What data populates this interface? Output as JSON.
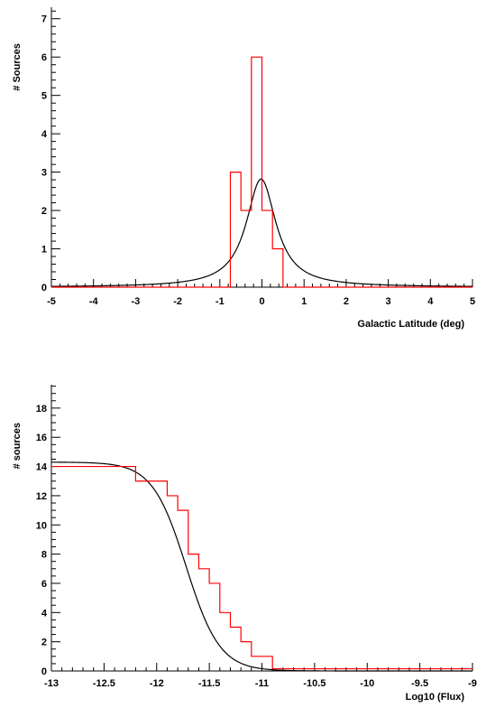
{
  "chart_data": [
    {
      "type": "line",
      "title": "",
      "xlabel": "Galactic Latitude (deg)",
      "ylabel": "# Sources",
      "xlim": [
        -5,
        5
      ],
      "ylim": [
        0,
        7.3
      ],
      "x_ticks": [
        -5,
        -4,
        -3,
        -2,
        -1,
        0,
        1,
        2,
        3,
        4,
        5
      ],
      "y_ticks": [
        0,
        1,
        2,
        3,
        4,
        5,
        6,
        7
      ],
      "histogram": {
        "color": "#ff0000",
        "bin_edges": [
          -5,
          -0.75,
          -0.5,
          -0.25,
          0,
          0.25,
          0.5,
          5
        ],
        "counts": [
          0,
          3,
          2,
          6,
          2,
          1,
          0
        ]
      },
      "fit": {
        "color": "#000000",
        "function": "lorentzian",
        "amplitude": 2.82,
        "center": -0.02,
        "half_width": 0.43
      }
    },
    {
      "type": "line",
      "title": "",
      "xlabel": "Log10 (Flux)",
      "ylabel": "# sources",
      "xlim": [
        -13,
        -9
      ],
      "ylim": [
        0,
        19.6
      ],
      "x_ticks": [
        -13,
        -12.5,
        -12,
        -11.5,
        -11,
        -10.5,
        -10,
        -9.5,
        -9
      ],
      "y_ticks": [
        0,
        2,
        4,
        6,
        8,
        10,
        12,
        14,
        16,
        18
      ],
      "histogram": {
        "color": "#ff0000",
        "bin_edges": [
          -13,
          -12.2,
          -11.9,
          -11.8,
          -11.7,
          -11.6,
          -11.5,
          -11.4,
          -11.3,
          -11.2,
          -11.1,
          -10.9,
          -9
        ],
        "counts": [
          14,
          13,
          12,
          11,
          8,
          7,
          6,
          4,
          3,
          2,
          1,
          0.15
        ]
      },
      "fit": {
        "color": "#000000",
        "function": "fermi",
        "plateau": 14.3,
        "midpoint": -11.72,
        "width": 0.16
      }
    }
  ]
}
